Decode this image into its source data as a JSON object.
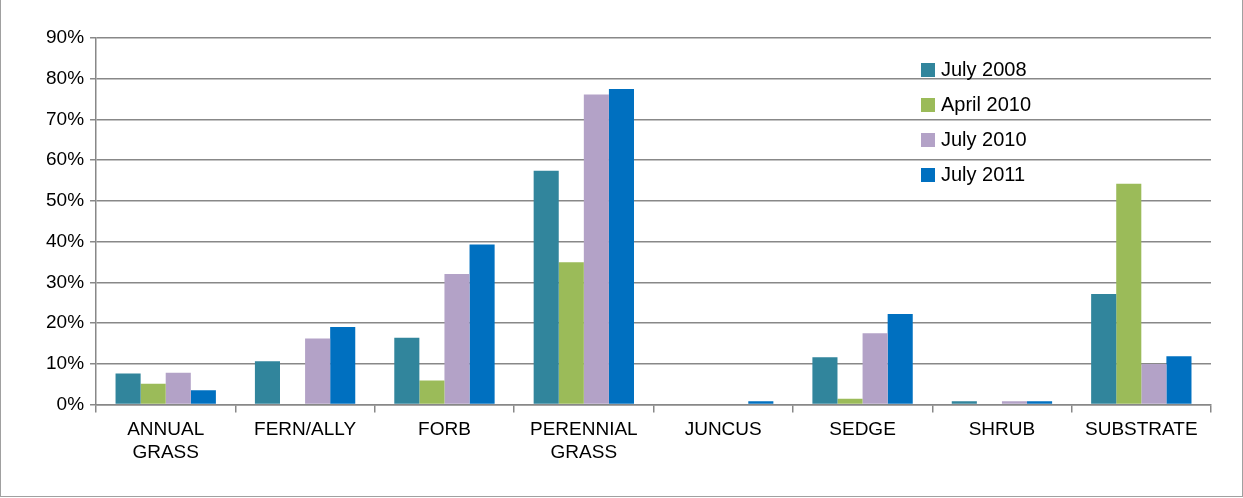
{
  "chart_data": {
    "type": "bar",
    "categories": [
      "ANNUAL GRASS",
      "FERN/ALLY",
      "FORB",
      "PERENNIAL GRASS",
      "JUNCUS",
      "SEDGE",
      "SHRUB",
      "SUBSTRATE"
    ],
    "series": [
      {
        "name": "July 2008",
        "color": "#31859c",
        "values": [
          7.6,
          10.6,
          16.4,
          57.4,
          0,
          11.6,
          0.8,
          27.1
        ]
      },
      {
        "name": "April 2010",
        "color": "#9bbb59",
        "values": [
          5.1,
          0,
          5.9,
          34.9,
          0,
          1.4,
          0,
          54.2
        ]
      },
      {
        "name": "July 2010",
        "color": "#b3a2c7",
        "values": [
          7.8,
          16.2,
          32.0,
          76.1,
          0,
          17.5,
          0.8,
          9.9
        ]
      },
      {
        "name": "July 2011",
        "color": "#0070c0",
        "values": [
          3.5,
          19.0,
          39.3,
          77.5,
          0.8,
          22.2,
          0.8,
          11.8
        ]
      }
    ],
    "ylim": [
      0,
      90
    ],
    "yticks": [
      {
        "value": 0,
        "label": "0%"
      },
      {
        "value": 10,
        "label": "10%"
      },
      {
        "value": 20,
        "label": "20%"
      },
      {
        "value": 30,
        "label": "30%"
      },
      {
        "value": 40,
        "label": "40%"
      },
      {
        "value": 50,
        "label": "50%"
      },
      {
        "value": 60,
        "label": "60%"
      },
      {
        "value": 70,
        "label": "70%"
      },
      {
        "value": 80,
        "label": "80%"
      },
      {
        "value": 90,
        "label": "90%"
      }
    ],
    "grid": "y",
    "legend": "top right"
  }
}
